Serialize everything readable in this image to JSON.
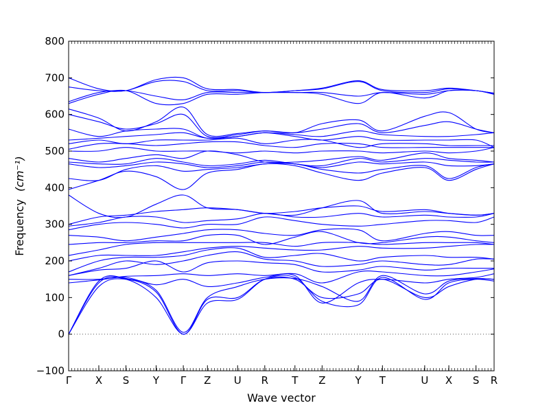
{
  "chart_data": {
    "type": "line",
    "title": "",
    "xlabel": "Wave vector",
    "ylabel": "Frequency",
    "ylabel_unit": "(cm⁻¹)",
    "ylim": [
      -100,
      800
    ],
    "yticks": [
      -100,
      0,
      100,
      200,
      300,
      400,
      500,
      600,
      700,
      800
    ],
    "series_color": "#0000ff",
    "zero_line": {
      "y": 0,
      "style": "dotted",
      "color": "#555555"
    },
    "grid": false,
    "xlim": [
      0,
      14.1
    ],
    "high_symmetry_points": [
      {
        "label": "Γ",
        "x": 0.0
      },
      {
        "label": "X",
        "x": 1.0
      },
      {
        "label": "S",
        "x": 1.9
      },
      {
        "label": "Y",
        "x": 2.9
      },
      {
        "label": "Γ",
        "x": 3.8
      },
      {
        "label": "Z",
        "x": 4.6
      },
      {
        "label": "U",
        "x": 5.6
      },
      {
        "label": "R",
        "x": 6.5
      },
      {
        "label": "T",
        "x": 7.5
      },
      {
        "label": "Z",
        "x": 8.4
      },
      {
        "label": "Y",
        "x": 9.6
      },
      {
        "label": "T",
        "x": 10.4
      },
      {
        "label": "U",
        "x": 11.8
      },
      {
        "label": "X",
        "x": 12.6
      },
      {
        "label": "S",
        "x": 13.5
      },
      {
        "label": "R",
        "x": 14.1
      }
    ],
    "series": [
      {
        "values": [
          0,
          140,
          150,
          100,
          0,
          85,
          95,
          150,
          155,
          90,
          80,
          155,
          95,
          140,
          150,
          145
        ]
      },
      {
        "values": [
          0,
          130,
          150,
          115,
          0,
          95,
          100,
          150,
          150,
          100,
          110,
          150,
          100,
          130,
          150,
          150
        ]
      },
      {
        "values": [
          0,
          145,
          152,
          120,
          5,
          100,
          130,
          150,
          152,
          130,
          90,
          160,
          110,
          145,
          152,
          150
        ]
      },
      {
        "values": [
          140,
          148,
          155,
          135,
          150,
          130,
          140,
          155,
          160,
          85,
          140,
          150,
          140,
          150,
          155,
          165
        ]
      },
      {
        "values": [
          150,
          150,
          158,
          160,
          165,
          160,
          165,
          160,
          165,
          140,
          170,
          170,
          160,
          160,
          170,
          178
        ]
      },
      {
        "values": [
          160,
          175,
          180,
          200,
          170,
          195,
          200,
          195,
          190,
          170,
          175,
          185,
          175,
          180,
          180,
          180
        ]
      },
      {
        "values": [
          160,
          180,
          200,
          190,
          200,
          215,
          225,
          205,
          200,
          185,
          190,
          200,
          190,
          190,
          205,
          205
        ]
      },
      {
        "values": [
          170,
          200,
          210,
          210,
          215,
          230,
          235,
          210,
          215,
          220,
          200,
          210,
          215,
          210,
          210,
          205
        ]
      },
      {
        "values": [
          200,
          215,
          215,
          215,
          225,
          235,
          240,
          235,
          230,
          230,
          240,
          235,
          235,
          240,
          245,
          245
        ]
      },
      {
        "values": [
          215,
          230,
          245,
          250,
          250,
          250,
          250,
          250,
          240,
          250,
          250,
          245,
          250,
          250,
          250,
          245
        ]
      },
      {
        "values": [
          245,
          250,
          250,
          255,
          255,
          270,
          270,
          245,
          265,
          280,
          250,
          250,
          265,
          265,
          255,
          250
        ]
      },
      {
        "values": [
          270,
          265,
          255,
          265,
          275,
          285,
          285,
          275,
          270,
          285,
          285,
          255,
          275,
          280,
          270,
          270
        ]
      },
      {
        "values": [
          285,
          300,
          305,
          300,
          290,
          300,
          300,
          320,
          310,
          300,
          295,
          300,
          310,
          310,
          305,
          320
        ]
      },
      {
        "values": [
          295,
          305,
          320,
          320,
          305,
          310,
          315,
          330,
          320,
          320,
          330,
          320,
          325,
          320,
          320,
          330
        ]
      },
      {
        "values": [
          300,
          320,
          325,
          335,
          340,
          345,
          340,
          330,
          325,
          345,
          365,
          330,
          335,
          330,
          325,
          330
        ]
      },
      {
        "values": [
          380,
          330,
          320,
          355,
          380,
          345,
          340,
          330,
          335,
          345,
          350,
          335,
          340,
          330,
          325,
          330
        ]
      },
      {
        "values": [
          395,
          420,
          445,
          430,
          395,
          440,
          450,
          465,
          460,
          440,
          420,
          440,
          455,
          420,
          450,
          465
        ]
      },
      {
        "values": [
          425,
          420,
          450,
          460,
          445,
          450,
          455,
          465,
          465,
          450,
          440,
          450,
          460,
          425,
          455,
          465
        ]
      },
      {
        "values": [
          465,
          455,
          460,
          470,
          465,
          455,
          460,
          470,
          465,
          455,
          470,
          465,
          470,
          460,
          460,
          465
        ]
      },
      {
        "values": [
          470,
          465,
          465,
          480,
          470,
          460,
          465,
          475,
          465,
          460,
          480,
          470,
          480,
          475,
          470,
          470
        ]
      },
      {
        "values": [
          480,
          470,
          480,
          490,
          480,
          500,
          490,
          470,
          470,
          475,
          485,
          475,
          495,
          480,
          475,
          470
        ]
      },
      {
        "values": [
          500,
          500,
          510,
          500,
          500,
          500,
          495,
          500,
          495,
          500,
          500,
          495,
          500,
          495,
          500,
          510
        ]
      },
      {
        "values": [
          505,
          520,
          520,
          515,
          520,
          525,
          525,
          515,
          510,
          520,
          520,
          510,
          510,
          510,
          510,
          510
        ]
      },
      {
        "values": [
          520,
          530,
          520,
          530,
          530,
          530,
          535,
          520,
          530,
          530,
          510,
          520,
          520,
          515,
          515,
          515
        ]
      },
      {
        "values": [
          530,
          535,
          540,
          545,
          550,
          535,
          540,
          550,
          540,
          530,
          540,
          530,
          530,
          530,
          530,
          510
        ]
      },
      {
        "values": [
          560,
          540,
          555,
          560,
          560,
          535,
          540,
          550,
          545,
          540,
          555,
          545,
          540,
          540,
          545,
          550
        ]
      },
      {
        "values": [
          600,
          580,
          560,
          575,
          600,
          540,
          545,
          555,
          550,
          560,
          575,
          550,
          570,
          580,
          560,
          550
        ]
      },
      {
        "values": [
          615,
          590,
          555,
          580,
          620,
          545,
          548,
          555,
          550,
          575,
          585,
          555,
          595,
          605,
          560,
          550
        ]
      },
      {
        "values": [
          630,
          655,
          665,
          630,
          630,
          655,
          655,
          660,
          660,
          655,
          630,
          660,
          645,
          665,
          665,
          655
        ]
      },
      {
        "values": [
          635,
          660,
          665,
          650,
          640,
          660,
          660,
          660,
          660,
          660,
          650,
          660,
          655,
          665,
          665,
          655
        ]
      },
      {
        "values": [
          675,
          665,
          665,
          690,
          690,
          665,
          665,
          660,
          665,
          670,
          690,
          665,
          660,
          670,
          665,
          658
        ]
      },
      {
        "values": [
          700,
          670,
          665,
          695,
          700,
          670,
          668,
          660,
          665,
          672,
          692,
          668,
          665,
          672,
          665,
          658
        ]
      }
    ]
  }
}
